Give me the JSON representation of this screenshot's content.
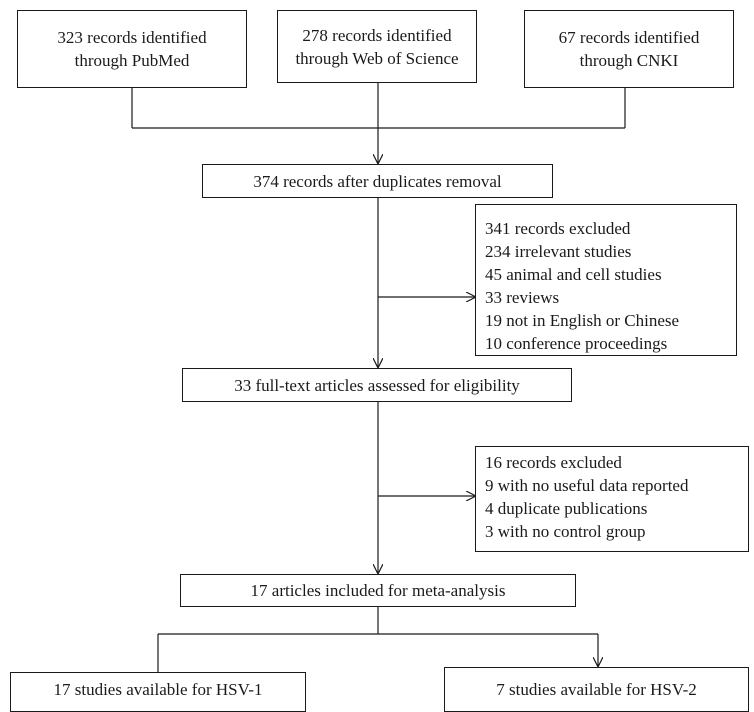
{
  "sources": [
    {
      "line1": "323 records identified",
      "line2": "through PubMed"
    },
    {
      "line1": "278 records identified",
      "line2": "through Web of Science"
    },
    {
      "line1": "67 records identified",
      "line2": "through CNKI"
    }
  ],
  "after_duplicates": "374 records after duplicates removal",
  "exclusion_1": {
    "title": "341 records excluded",
    "items": [
      "234 irrelevant studies",
      "45 animal and cell studies",
      "33 reviews",
      "19 not in English or Chinese",
      "10 conference proceedings"
    ]
  },
  "full_text": "33 full-text articles assessed for eligibility",
  "exclusion_2": {
    "title": "16 records excluded",
    "items": [
      "9 with no useful data reported",
      "4 duplicate publications",
      "3 with no control group"
    ]
  },
  "included": "17 articles included for meta-analysis",
  "outcomes": [
    "17 studies available for HSV-1",
    "7 studies available for HSV-2"
  ]
}
